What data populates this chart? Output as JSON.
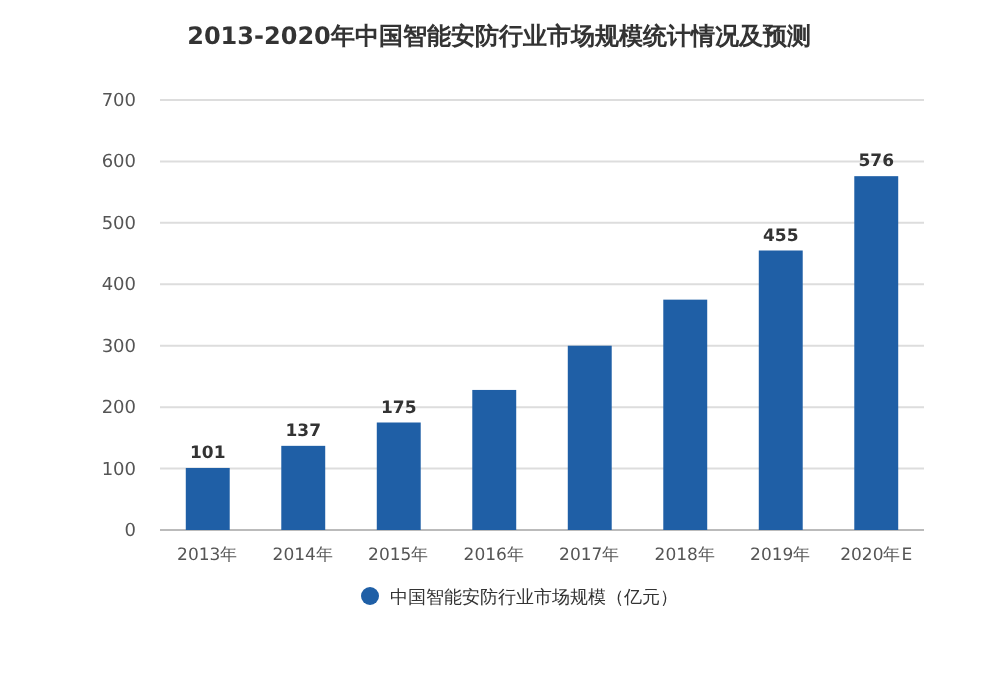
{
  "chart_data": {
    "type": "bar",
    "title": "2013-2020年中国智能安防行业市场规模统计情况及预测",
    "categories": [
      "2013年",
      "2014年",
      "2015年",
      "2016年",
      "2017年",
      "2018年",
      "2019年",
      "2020年E"
    ],
    "series": [
      {
        "name": "中国智能安防行业市场规模（亿元）",
        "color": "#1f5fa6",
        "values": [
          101,
          137,
          175,
          228,
          300,
          375,
          455,
          576
        ],
        "value_labels": [
          "101",
          "137",
          "175",
          null,
          null,
          null,
          "455",
          "576"
        ]
      }
    ],
    "ylim": [
      0,
      700
    ],
    "yticks": [
      0,
      100,
      200,
      300,
      400,
      500,
      600,
      700
    ],
    "grid": "y",
    "legend": "bottom"
  }
}
